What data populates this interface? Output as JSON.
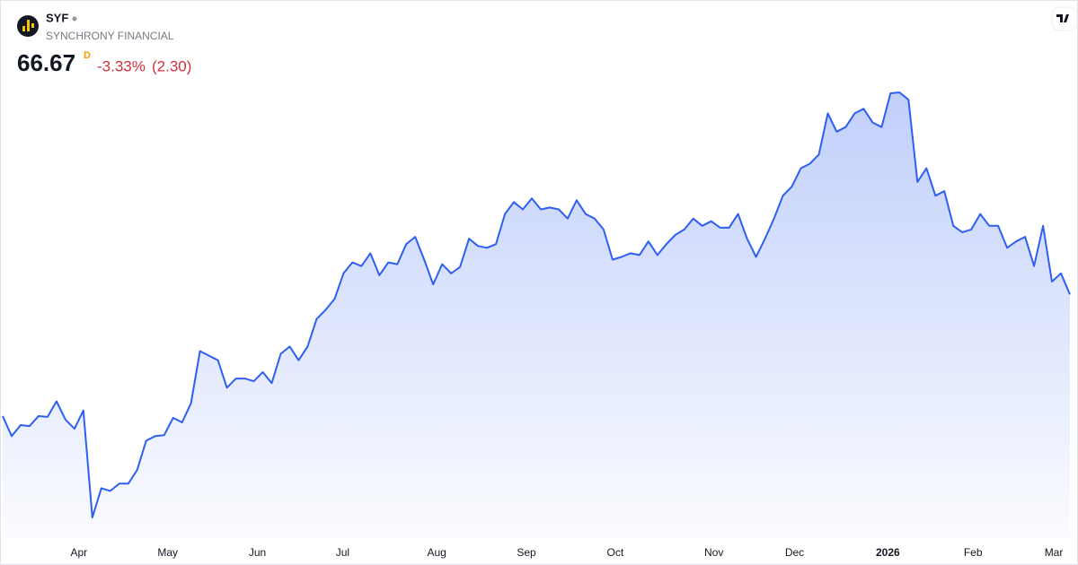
{
  "header": {
    "symbol": "SYF",
    "name": "SYNCHRONY FINANCIAL",
    "price": 66.67,
    "interval": "D",
    "change_percent": {
      "value": -3.33,
      "label": "-3.33%"
    },
    "change": {
      "value": -2.3,
      "label": "(2.30)"
    }
  },
  "chart_data": {
    "type": "area",
    "color": "#2f5ff0",
    "values": [
      53.37,
      51.17,
      52.37,
      52.27,
      53.37,
      53.27,
      54.97,
      52.97,
      51.97,
      53.97,
      42.27,
      45.47,
      45.17,
      45.97,
      45.97,
      47.47,
      50.67,
      51.17,
      51.27,
      53.17,
      52.67,
      54.77,
      60.47,
      59.97,
      59.47,
      56.47,
      57.47,
      57.47,
      57.17,
      58.17,
      56.97,
      60.17,
      60.97,
      59.47,
      60.97,
      63.97,
      64.97,
      66.17,
      68.97,
      70.17,
      69.77,
      71.17,
      68.77,
      70.17,
      69.97,
      72.17,
      72.97,
      70.47,
      67.77,
      69.97,
      68.97,
      69.67,
      72.77,
      71.97,
      71.77,
      72.17,
      75.47,
      76.77,
      75.97,
      77.17,
      75.97,
      76.17,
      75.97,
      74.97,
      76.97,
      75.47,
      74.97,
      73.77,
      70.47,
      70.77,
      71.17,
      70.97,
      72.47,
      70.97,
      72.17,
      73.17,
      73.77,
      74.97,
      74.17,
      74.67,
      73.97,
      73.97,
      75.47,
      72.77,
      70.77,
      72.77,
      74.97,
      77.47,
      78.47,
      80.47,
      80.97,
      81.97,
      86.47,
      84.47,
      84.97,
      86.47,
      86.97,
      85.47,
      84.97,
      88.67,
      88.77,
      87.97,
      78.97,
      80.47,
      77.47,
      77.97,
      74.17,
      73.47,
      73.77,
      75.47,
      74.17,
      74.17,
      71.77,
      72.47,
      72.97,
      69.77,
      74.17,
      68.07,
      68.97,
      66.67
    ],
    "xticks": [
      {
        "value": 8.5,
        "label": "Apr"
      },
      {
        "value": 18.4,
        "label": "May"
      },
      {
        "value": 28.4,
        "label": "Jun"
      },
      {
        "value": 37.9,
        "label": "Jul"
      },
      {
        "value": 48.4,
        "label": "Aug"
      },
      {
        "value": 58.4,
        "label": "Sep"
      },
      {
        "value": 68.3,
        "label": "Oct"
      },
      {
        "value": 79.3,
        "label": "Nov"
      },
      {
        "value": 88.3,
        "label": "Dec"
      },
      {
        "value": 98.7,
        "label": "2026"
      },
      {
        "value": 108.2,
        "label": "Feb"
      },
      {
        "value": 117.2,
        "label": "Mar"
      }
    ]
  }
}
